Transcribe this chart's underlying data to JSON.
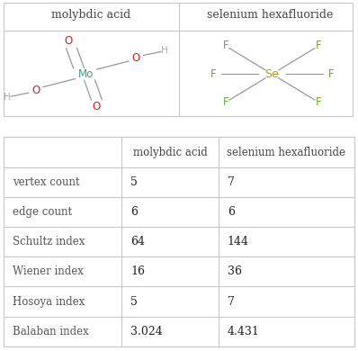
{
  "title_row": [
    "molybdic acid",
    "selenium hexafluoride"
  ],
  "row_labels": [
    "vertex count",
    "edge count",
    "Schultz index",
    "Wiener index",
    "Hosoya index",
    "Balaban index"
  ],
  "col1_values": [
    "5",
    "6",
    "64",
    "16",
    "5",
    "3.024"
  ],
  "col2_values": [
    "7",
    "6",
    "144",
    "36",
    "7",
    "4.431"
  ],
  "bg_color": "#ffffff",
  "border_color": "#c8c8c8",
  "header_text_color": "#444444",
  "label_text_color": "#555555",
  "value_text_color": "#222222",
  "mo_color": "#3a9a8a",
  "o_color": "#cc2222",
  "h_color": "#aaaaaa",
  "se_color": "#b8960a",
  "f_color": "#6aaa30",
  "bond_color": "#999999"
}
